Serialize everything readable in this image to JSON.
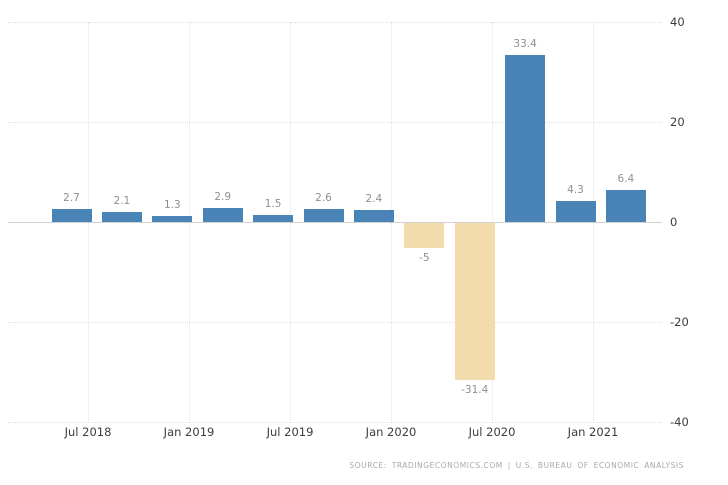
{
  "chart_data": {
    "type": "bar",
    "title": "",
    "xlabel": "",
    "ylabel": "",
    "values": [
      2.7,
      2.1,
      1.3,
      2.9,
      1.5,
      2.6,
      2.4,
      -5,
      -31.4,
      33.4,
      4.3,
      6.4
    ],
    "bar_value_labels": [
      "2.7",
      "2.1",
      "1.3",
      "2.9",
      "1.5",
      "2.6",
      "2.4",
      "-5",
      "-31.4",
      "33.4",
      "4.3",
      "6.4"
    ],
    "x_tick_labels": [
      "Jul 2018",
      "Jan 2019",
      "Jul 2019",
      "Jan 2020",
      "Jul 2020",
      "Jan 2021"
    ],
    "y_ticks": [
      40,
      20,
      0,
      -20,
      -40
    ],
    "y_tick_labels": [
      "40",
      "20",
      "0",
      "-20",
      "-40"
    ],
    "ylim": [
      -40,
      40
    ],
    "grid": true,
    "legend_position": "none",
    "colors": {
      "positive_bar": "#4a83b5",
      "negative_bar": "#f2dcab",
      "value_label": "#8f8f8f",
      "axis_label": "#3d3d3d",
      "zero_line": "#d2d2d2",
      "gridline": "#e0e0e0"
    }
  },
  "footer": {
    "source_text": "SOURCE:  TRADINGECONOMICS.COM  |  U.S. BUREAU OF ECONOMIC ANALYSIS"
  }
}
